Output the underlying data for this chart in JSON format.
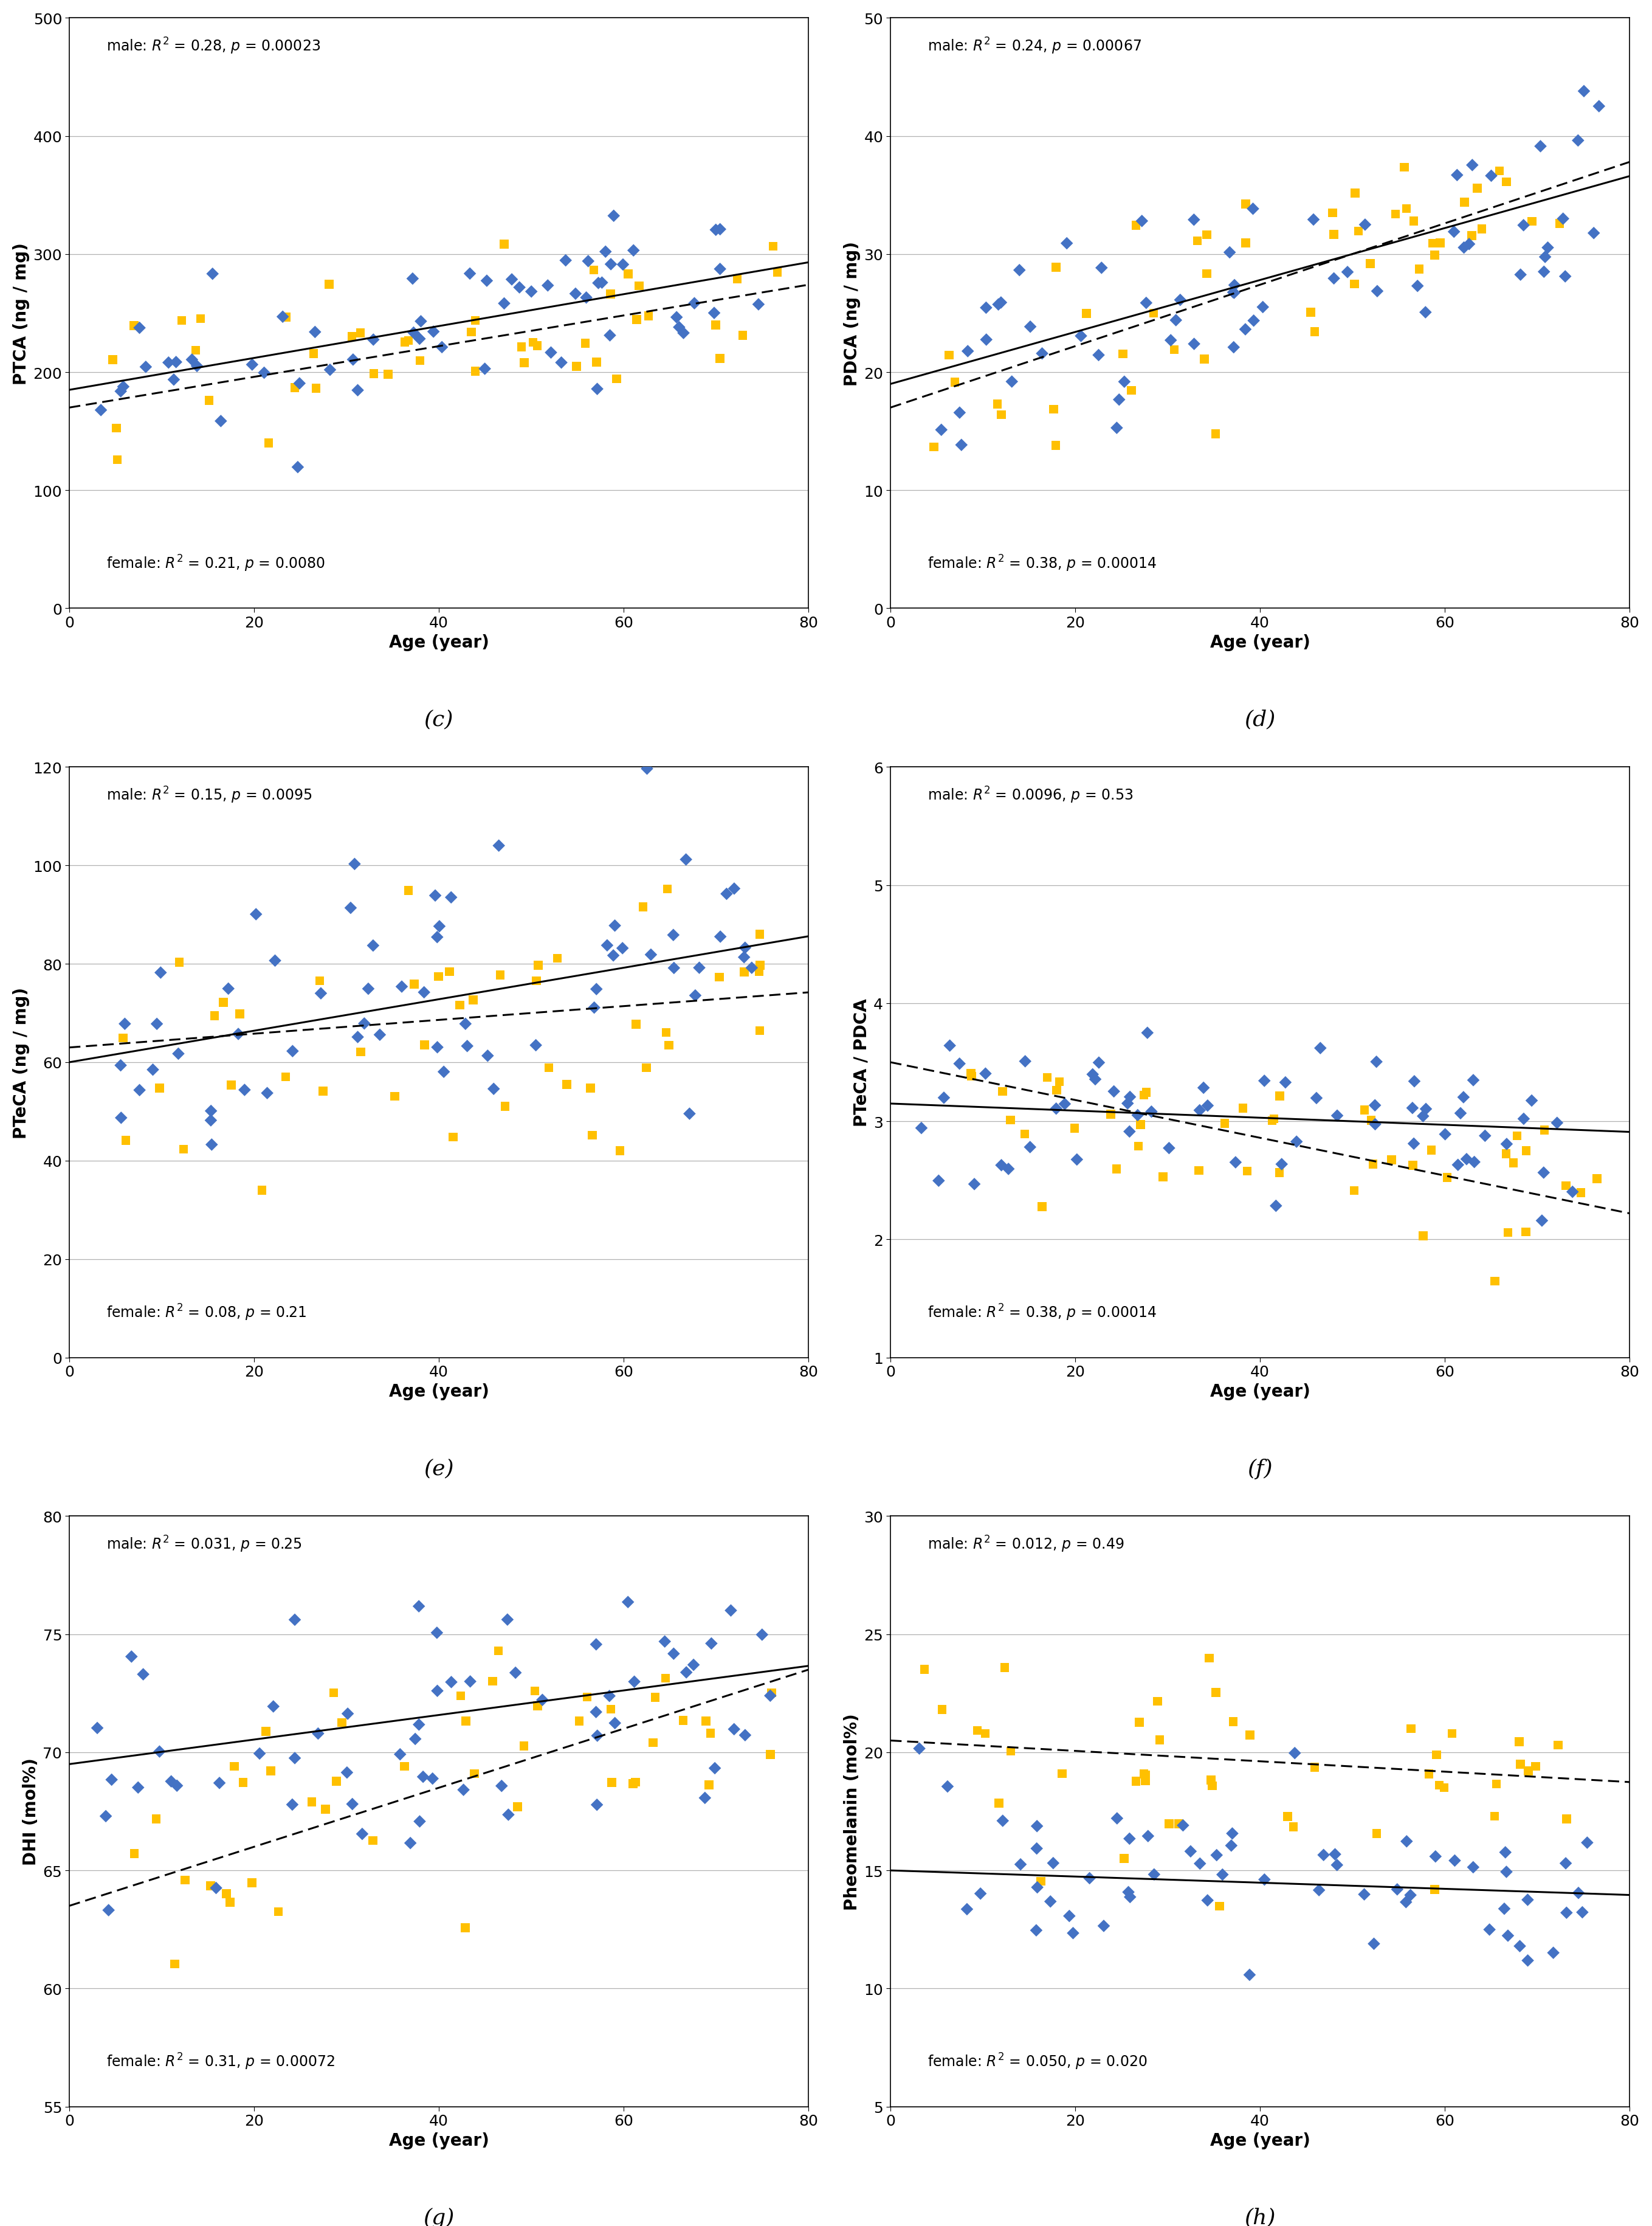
{
  "panels": [
    {
      "label": "(c)",
      "ylabel": "PTCA (ng / mg)",
      "ylim": [
        0,
        500
      ],
      "yticks": [
        0,
        100,
        200,
        300,
        400,
        500
      ],
      "male_ann": "male: $R^2$ = 0.28, $p$ = 0.00023",
      "female_ann": "female: $R^2$ = 0.21, $p$ = 0.0080",
      "male_slope": 1.35,
      "male_int": 185,
      "fem_slope": 1.3,
      "fem_int": 170,
      "male_seed": 101,
      "fem_seed": 201,
      "male_noise": 38,
      "fem_noise": 38,
      "male_n_young": 12,
      "male_n_mid": 28,
      "male_n_old": 20,
      "fem_n_young": 8,
      "fem_n_mid": 22,
      "fem_n_old": 15
    },
    {
      "label": "(d)",
      "ylabel": "PDCA (ng / mg)",
      "ylim": [
        0,
        50
      ],
      "yticks": [
        0,
        10,
        20,
        30,
        40,
        50
      ],
      "male_ann": "male: $R^2$ = 0.24, $p$ = 0.00067",
      "female_ann": "female: $R^2$ = 0.38, $p$ = 0.00014",
      "male_slope": 0.22,
      "male_int": 19,
      "fem_slope": 0.26,
      "fem_int": 17,
      "male_seed": 102,
      "fem_seed": 202,
      "male_noise": 4.5,
      "fem_noise": 4.5,
      "male_n_young": 12,
      "male_n_mid": 28,
      "male_n_old": 20,
      "fem_n_young": 8,
      "fem_n_mid": 22,
      "fem_n_old": 15
    },
    {
      "label": "(e)",
      "ylabel": "PTeCA (ng / mg)",
      "ylim": [
        0,
        120
      ],
      "yticks": [
        0,
        20,
        40,
        60,
        80,
        100,
        120
      ],
      "male_ann": "male: $R^2$ = 0.15, $p$ = 0.0095",
      "female_ann": "female: $R^2$ = 0.08, $p$ = 0.21",
      "male_slope": 0.32,
      "male_int": 60,
      "fem_slope": 0.14,
      "fem_int": 63,
      "male_seed": 103,
      "fem_seed": 203,
      "male_noise": 14,
      "fem_noise": 14,
      "male_n_young": 12,
      "male_n_mid": 28,
      "male_n_old": 20,
      "fem_n_young": 8,
      "fem_n_mid": 22,
      "fem_n_old": 15
    },
    {
      "label": "(f)",
      "ylabel": "PTeCA / PDCA",
      "ylim": [
        1,
        6
      ],
      "yticks": [
        1,
        2,
        3,
        4,
        5,
        6
      ],
      "male_ann": "male: $R^2$ = 0.0096, $p$ = 0.53",
      "female_ann": "female: $R^2$ = 0.38, $p$ = 0.00014",
      "male_slope": -0.003,
      "male_int": 3.15,
      "fem_slope": -0.016,
      "fem_int": 3.5,
      "male_seed": 104,
      "fem_seed": 204,
      "male_noise": 0.32,
      "fem_noise": 0.32,
      "male_n_young": 12,
      "male_n_mid": 28,
      "male_n_old": 20,
      "fem_n_young": 8,
      "fem_n_mid": 22,
      "fem_n_old": 15
    },
    {
      "label": "(g)",
      "ylabel": "DHI (mol%)",
      "ylim": [
        55,
        80
      ],
      "yticks": [
        55,
        60,
        65,
        70,
        75,
        80
      ],
      "male_ann": "male: $R^2$ = 0.031, $p$ = 0.25",
      "female_ann": "female: $R^2$ = 0.31, $p$ = 0.00072",
      "male_slope": 0.052,
      "male_int": 69.5,
      "fem_slope": 0.125,
      "fem_int": 63.5,
      "male_seed": 105,
      "fem_seed": 205,
      "male_noise": 2.8,
      "fem_noise": 2.8,
      "male_n_young": 12,
      "male_n_mid": 28,
      "male_n_old": 20,
      "fem_n_young": 8,
      "fem_n_mid": 22,
      "fem_n_old": 15
    },
    {
      "label": "(h)",
      "ylabel": "Pheomelanin (mol%)",
      "ylim": [
        5,
        30
      ],
      "yticks": [
        5,
        10,
        15,
        20,
        25,
        30
      ],
      "male_ann": "male: $R^2$ = 0.012, $p$ = 0.49",
      "female_ann": "female: $R^2$ = 0.050, $p$ = 0.020",
      "male_slope": -0.013,
      "male_int": 15.0,
      "fem_slope": -0.022,
      "fem_int": 20.5,
      "male_seed": 106,
      "fem_seed": 206,
      "male_noise": 1.8,
      "fem_noise": 2.2,
      "male_n_young": 12,
      "male_n_mid": 28,
      "male_n_old": 20,
      "fem_n_young": 8,
      "fem_n_mid": 22,
      "fem_n_old": 15
    }
  ],
  "male_color": "#4472C4",
  "female_color": "#FFC000",
  "xlabel": "Age (year)",
  "xlim": [
    0,
    80
  ],
  "xticks": [
    0,
    20,
    40,
    60,
    80
  ],
  "marker_size": 110,
  "line_width": 2.2,
  "ann_fontsize": 17,
  "label_fontsize": 20,
  "tick_fontsize": 18,
  "panel_label_fontsize": 26
}
